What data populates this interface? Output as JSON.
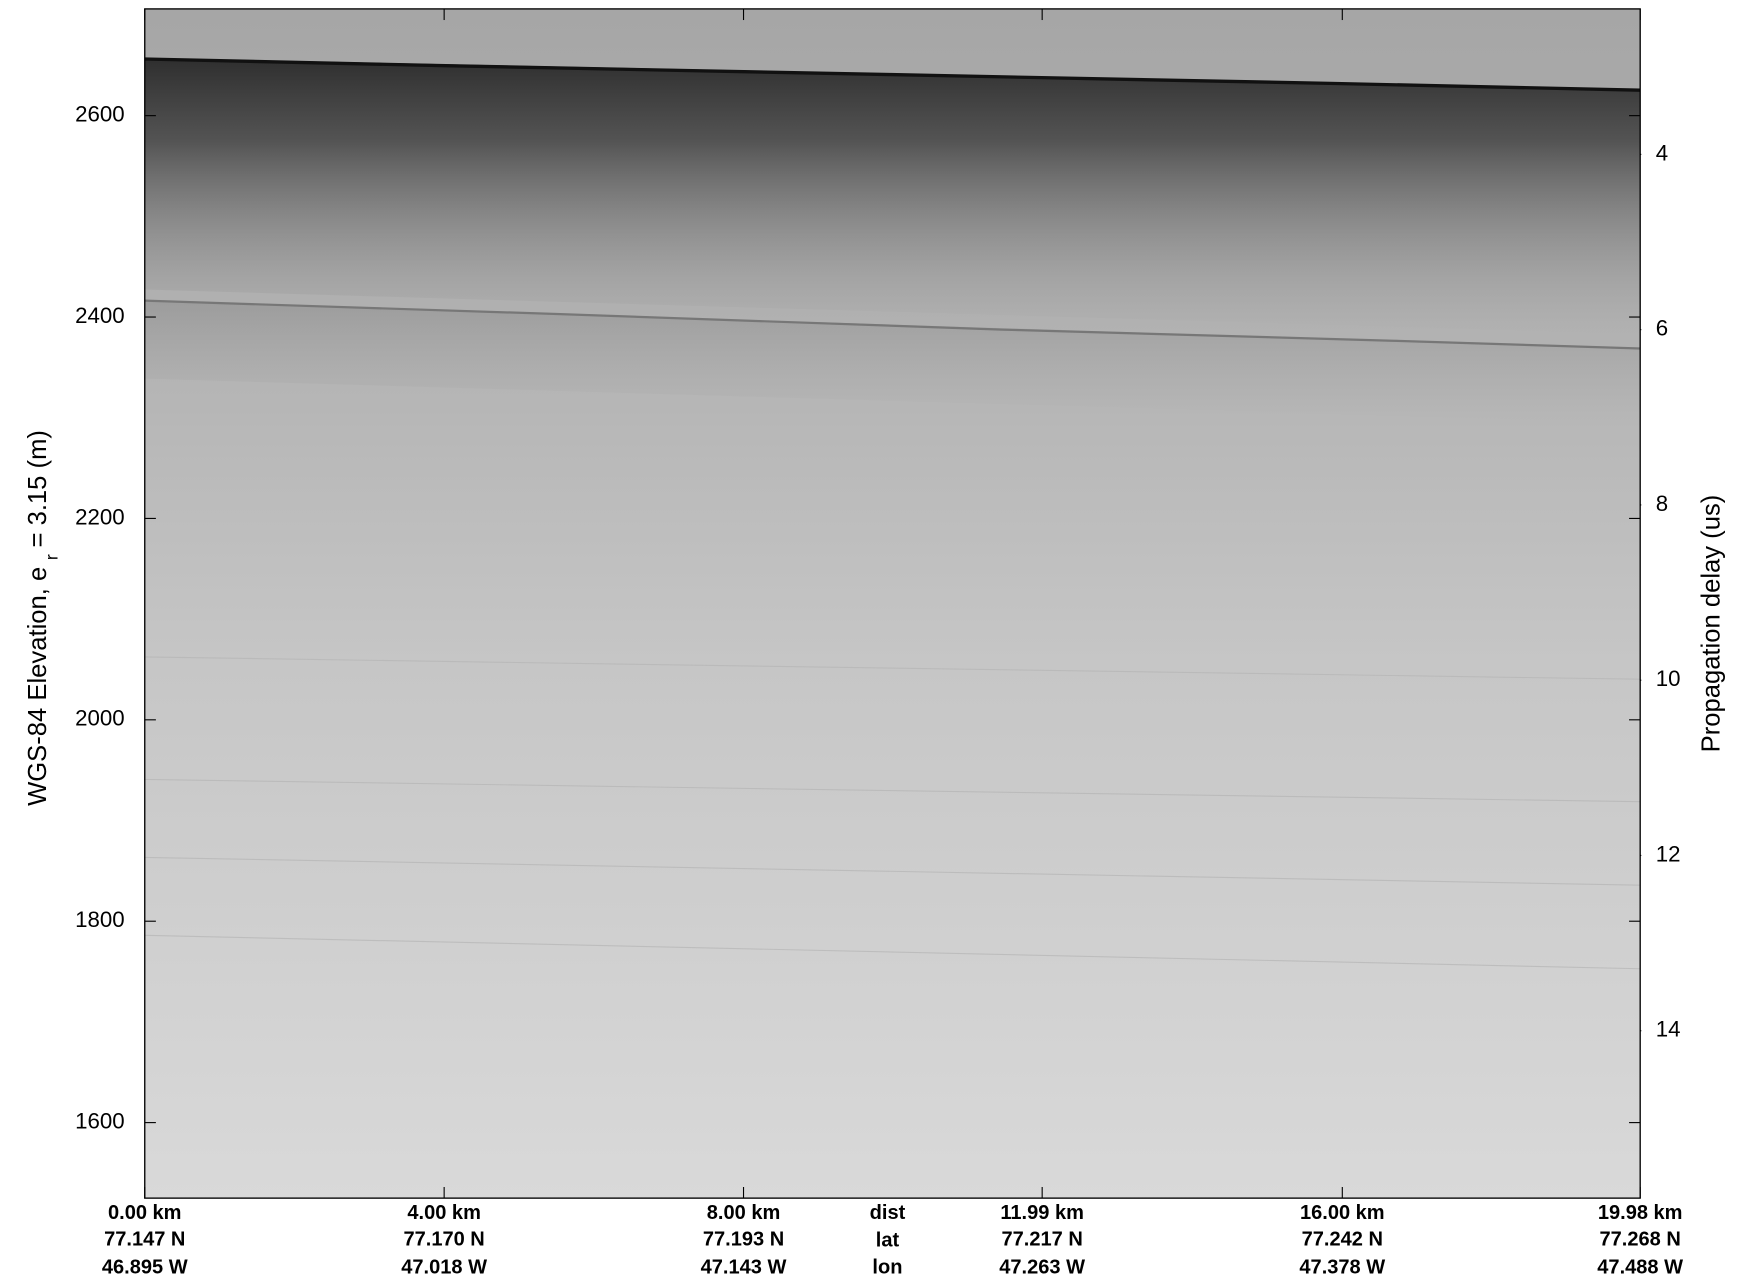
{
  "chart_data": {
    "type": "echogram",
    "ylabel": "WGS-84 Elevation, e",
    "ylabel_sub": "r",
    "ylabel_end": "= 3.15 (m)",
    "y2label": "Propagation delay (us)",
    "ylim": [
      1525,
      2706
    ],
    "yticks": [
      1600,
      1800,
      2000,
      2200,
      2400,
      2600
    ],
    "y2lim": [
      15.91,
      2.34
    ],
    "y2ticks": [
      4,
      6,
      8,
      10,
      12,
      14
    ],
    "xlim": [
      0,
      19.98
    ],
    "xticks": [
      {
        "value": 0,
        "label": "0.00 km"
      },
      {
        "value": 4,
        "label": "4.00 km"
      },
      {
        "value": 8,
        "label": "8.00 km"
      },
      {
        "value": 11.99,
        "label": "11.99 km"
      },
      {
        "value": 16,
        "label": "16.00 km"
      },
      {
        "value": 19.98,
        "label": "19.98 km"
      }
    ],
    "lat_labels": [
      "77.147 N",
      "77.170 N",
      "77.193 N",
      "77.217 N",
      "77.242 N",
      "77.268 N"
    ],
    "lon_labels": [
      "46.895 W",
      "47.018 W",
      "47.143 W",
      "47.263 W",
      "47.378 W",
      "47.488 W"
    ],
    "row_labels": [
      "dist",
      "lat",
      "lon"
    ]
  }
}
